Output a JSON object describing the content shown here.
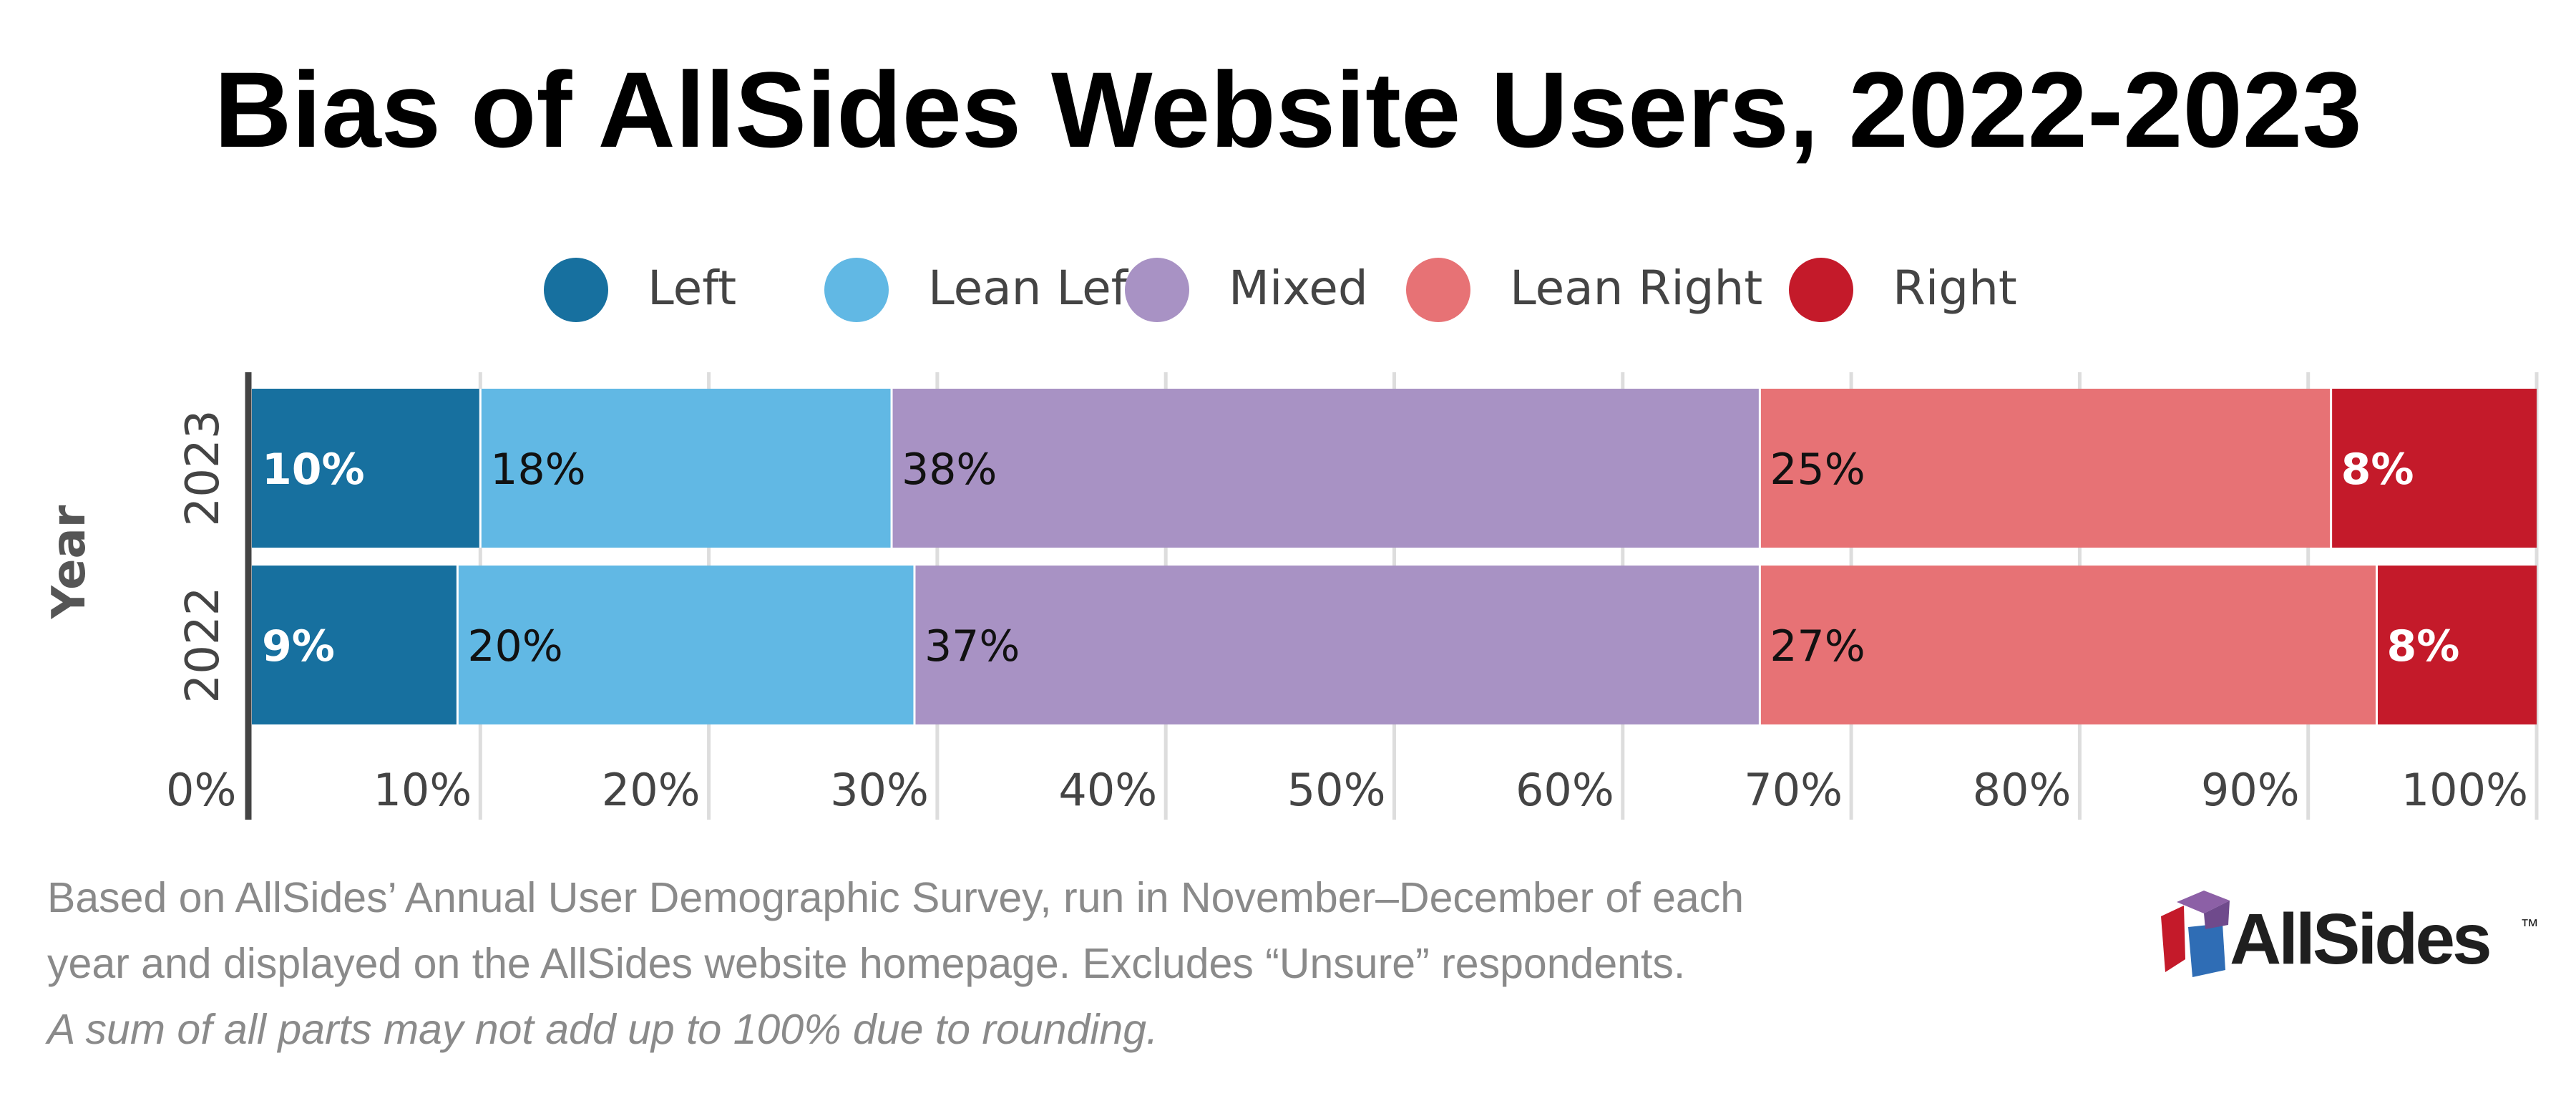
{
  "chart_data": {
    "type": "bar",
    "orientation": "horizontal",
    "stacked": true,
    "title": "Bias of AllSides Website Users, 2022-2023",
    "xlabel": "",
    "ylabel": "Year",
    "categories": [
      "2023",
      "2022"
    ],
    "xlim": [
      0,
      100
    ],
    "x_ticks": [
      "0%",
      "10%",
      "20%",
      "30%",
      "40%",
      "50%",
      "60%",
      "70%",
      "80%",
      "90%",
      "100%"
    ],
    "grid": true,
    "legend_position": "top",
    "series": [
      {
        "name": "Left",
        "color": "#17709f",
        "label_color": "#ffffff",
        "values": [
          10,
          9
        ],
        "labels": [
          "10%",
          "9%"
        ]
      },
      {
        "name": "Lean Left",
        "color": "#61b8e4",
        "label_color": "#111111",
        "values": [
          18,
          20
        ],
        "labels": [
          "18%",
          "20%"
        ]
      },
      {
        "name": "Mixed",
        "color": "#a892c4",
        "label_color": "#111111",
        "values": [
          38,
          37
        ],
        "labels": [
          "38%",
          "37%"
        ]
      },
      {
        "name": "Lean Right",
        "color": "#e77275",
        "label_color": "#111111",
        "values": [
          25,
          27
        ],
        "labels": [
          "25%",
          "27%"
        ]
      },
      {
        "name": "Right",
        "color": "#c41a2a",
        "label_color": "#ffffff",
        "values": [
          8,
          8
        ],
        "labels": [
          "8%",
          "8%"
        ]
      }
    ]
  },
  "footnote": {
    "line1": "Based on AllSides’ Annual User Demographic Survey, run in November–December of each",
    "line2": "year and displayed on the AllSides website homepage. Excludes “Unsure” respondents.",
    "line3": "A sum of all parts may not add up to 100% due to rounding."
  },
  "logo": {
    "text": "AllSides",
    "trademark": "™",
    "colors": [
      "#c41a2a",
      "#2f6db5",
      "#8c60a6"
    ]
  }
}
